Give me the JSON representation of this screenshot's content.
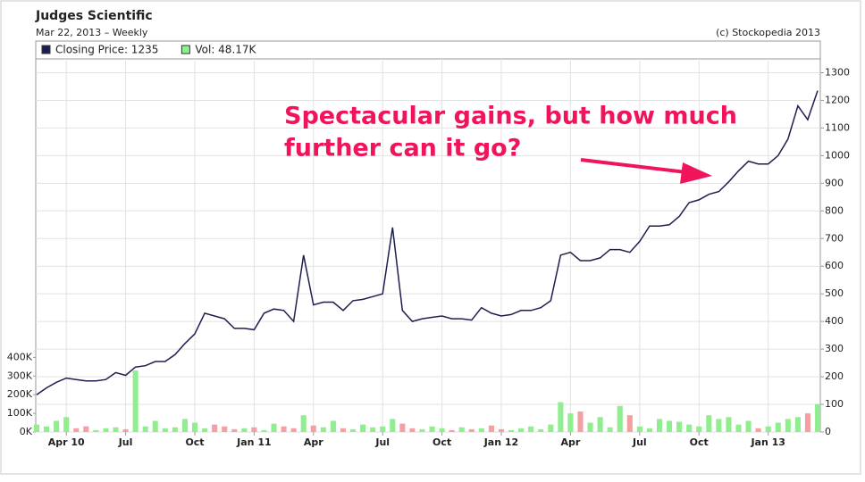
{
  "chart_data": {
    "type": "line",
    "title": "Judges Scientific",
    "subtitle": "Mar 22, 2013 – Weekly",
    "source": "(c) Stockopedia 2013",
    "annotation": [
      "Spectacular gains, but how much",
      "further can it go?"
    ],
    "annotation_color": "#f0145a",
    "categories": [
      null,
      null,
      null,
      "Apr 10",
      null,
      null,
      null,
      null,
      null,
      "Jul",
      null,
      null,
      null,
      null,
      null,
      null,
      "Oct",
      null,
      null,
      null,
      null,
      null,
      "Jan 11",
      null,
      null,
      null,
      null,
      null,
      "Apr",
      null,
      null,
      null,
      null,
      null,
      null,
      "Jul",
      null,
      null,
      null,
      null,
      null,
      "Oct",
      null,
      null,
      null,
      null,
      null,
      "Jan 12",
      null,
      null,
      null,
      null,
      null,
      null,
      "Apr",
      null,
      null,
      null,
      null,
      null,
      null,
      "Jul",
      null,
      null,
      null,
      null,
      null,
      "Oct",
      null,
      null,
      null,
      null,
      null,
      null,
      "Jan 13",
      null,
      null,
      null,
      null,
      null
    ],
    "series": [
      {
        "name": "Closing Price: 1235",
        "color": "#1e1e4e",
        "values": [
          135,
          160,
          180,
          195,
          190,
          185,
          185,
          190,
          215,
          205,
          235,
          240,
          255,
          255,
          280,
          320,
          355,
          430,
          420,
          410,
          375,
          375,
          370,
          430,
          445,
          440,
          400,
          640,
          460,
          470,
          470,
          440,
          475,
          480,
          490,
          500,
          740,
          440,
          400,
          410,
          415,
          420,
          410,
          410,
          405,
          450,
          430,
          420,
          425,
          440,
          440,
          450,
          475,
          640,
          650,
          620,
          620,
          630,
          660,
          660,
          650,
          690,
          745,
          745,
          750,
          780,
          830,
          840,
          860,
          870,
          905,
          945,
          980,
          970,
          970,
          1000,
          1060,
          1180,
          1130,
          1235
        ]
      },
      {
        "name": "Vol: 48.17K",
        "type": "bar",
        "axis": "y2",
        "color": "#90ee90",
        "down_color": "#f4a0a0",
        "values": [
          40000,
          30000,
          60000,
          80000,
          20000,
          30000,
          10000,
          20000,
          25000,
          15000,
          330000,
          30000,
          60000,
          20000,
          25000,
          70000,
          50000,
          20000,
          40000,
          30000,
          15000,
          20000,
          25000,
          10000,
          45000,
          30000,
          20000,
          90000,
          35000,
          25000,
          60000,
          20000,
          15000,
          40000,
          25000,
          30000,
          70000,
          45000,
          20000,
          15000,
          30000,
          20000,
          10000,
          25000,
          15000,
          20000,
          35000,
          15000,
          10000,
          20000,
          30000,
          15000,
          40000,
          160000,
          100000,
          110000,
          50000,
          80000,
          25000,
          140000,
          90000,
          30000,
          20000,
          70000,
          60000,
          55000,
          40000,
          30000,
          90000,
          70000,
          80000,
          40000,
          60000,
          20000,
          30000,
          50000,
          70000,
          80000,
          100000,
          150000
        ]
      }
    ],
    "ylim": [
      0,
      1350
    ],
    "yticks": [
      0,
      100,
      200,
      300,
      400,
      500,
      600,
      700,
      800,
      900,
      1000,
      1100,
      1200,
      1300
    ],
    "y2lim": [
      0,
      2000000
    ],
    "y2ticks": [
      {
        "value": 0,
        "label": "0K"
      },
      {
        "value": 100000,
        "label": "100K"
      },
      {
        "value": 200000,
        "label": "200K"
      },
      {
        "value": 300000,
        "label": "300K"
      },
      {
        "value": 400000,
        "label": "400K"
      }
    ],
    "grid": true
  }
}
